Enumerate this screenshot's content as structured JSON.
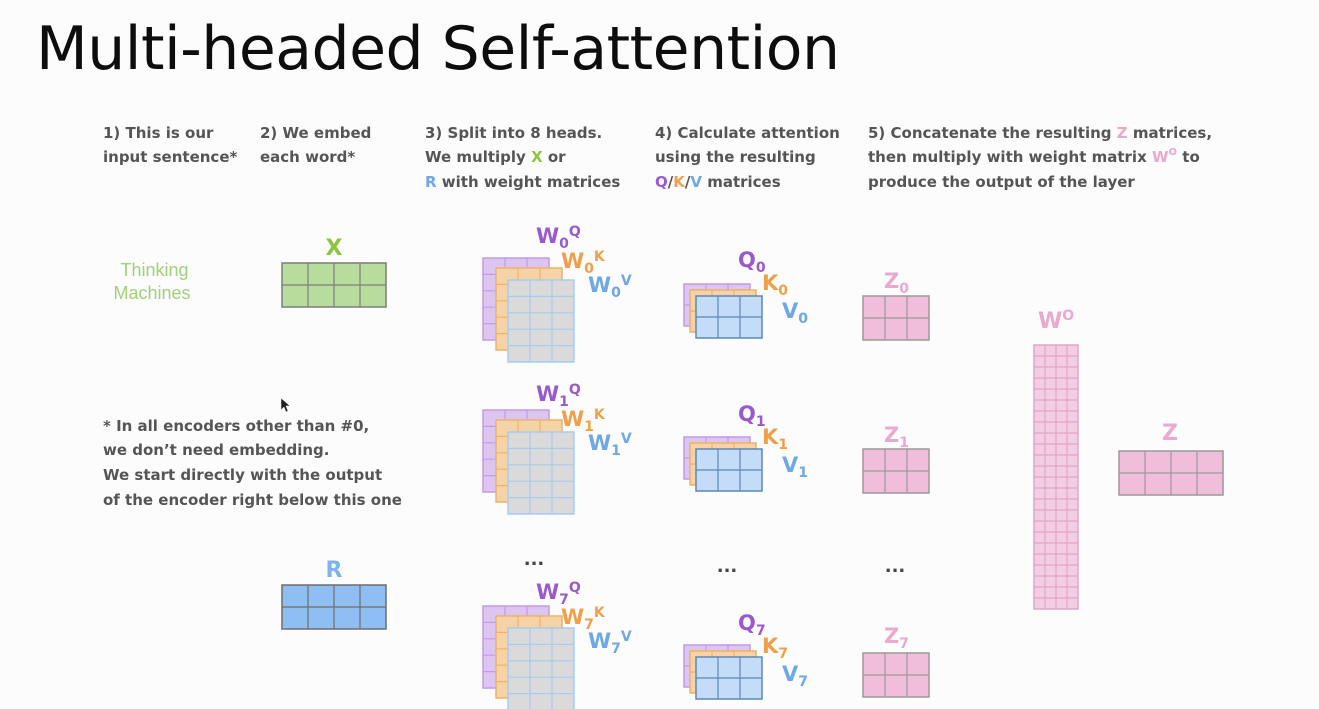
{
  "title": "Multi-headed Self-attention",
  "steps": {
    "s1": [
      "1) This is our",
      "input sentence*"
    ],
    "s2": [
      "2) We embed",
      "each word*"
    ],
    "s3": {
      "line1": "3) Split into 8 heads.",
      "line2_pre": "We multiply ",
      "line2_x": "X",
      "line2_post": " or",
      "line3_r": "R",
      "line3_post": " with weight matrices"
    },
    "s4": {
      "line1": "4) Calculate attention",
      "line2": "using the resulting",
      "line3_q": "Q",
      "sep1": "/",
      "line3_k": "K",
      "sep2": "/",
      "line3_v": "V",
      "line3_post": " matrices"
    },
    "s5": {
      "line1_pre": "5) Concatenate the resulting ",
      "line1_z": "Z",
      "line1_post": " matrices,",
      "line2_pre": "then multiply with weight matrix ",
      "line2_w": "W",
      "line2_sup": "O",
      "line2_post": " to",
      "line3": "produce the output of the layer"
    }
  },
  "sentence": [
    "Thinking",
    "Machines"
  ],
  "note": [
    "* In all encoders other than #0,",
    "we don’t need embedding.",
    "We start directly with the output",
    "of the encoder right below this one"
  ],
  "labels": {
    "x": "X",
    "r": "R",
    "ellipsis": "...",
    "wo_w": "W",
    "wo_sup": "O",
    "z": "Z"
  },
  "heads": [
    {
      "index": "0",
      "wq": "W",
      "q": "Q",
      "k": "K",
      "v": "V",
      "z": "Z"
    },
    {
      "index": "1",
      "wq": "W",
      "q": "Q",
      "k": "K",
      "v": "V",
      "z": "Z"
    },
    {
      "index": "7",
      "wq": "W",
      "q": "Q",
      "k": "K",
      "v": "V",
      "z": "Z"
    }
  ],
  "colors": {
    "green": "#8cc63f",
    "green_fill": "#b8dc9c",
    "blue_label": "#6fa8e6",
    "blue_fill": "#8fbef2",
    "light_blue_fill": "#c3dcf7",
    "purple": "#9b59d0",
    "purple_fill": "#dcc6ef",
    "orange": "#f0a04a",
    "orange_fill": "#f6d3a7",
    "pink": "#e8a9cc",
    "pink_fill": "#f0bedb",
    "grey_fill": "#dadada",
    "text": "#555555"
  }
}
